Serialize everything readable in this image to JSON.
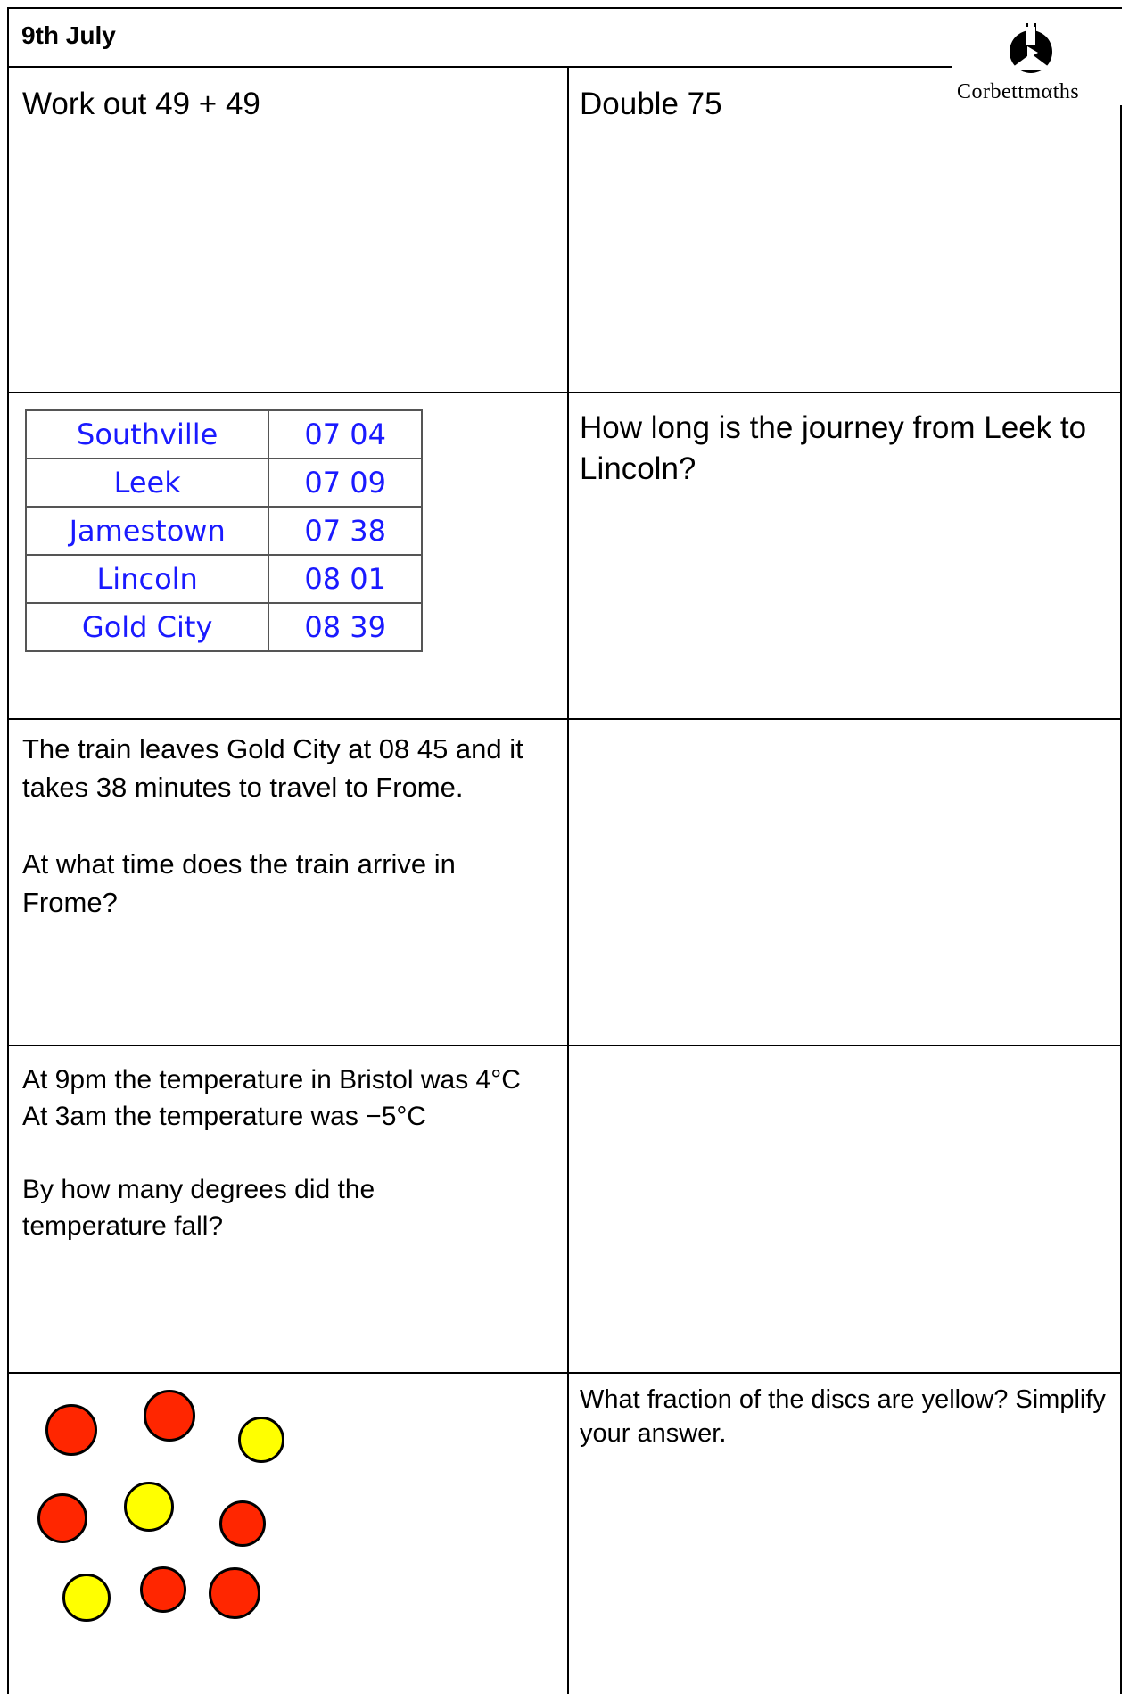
{
  "header": {
    "date": "9th July"
  },
  "logo": {
    "name": "corbettmaths-logo-icon",
    "text": "Corbettmαths"
  },
  "questions": {
    "q1": "Work out 49 + 49",
    "q2": "Double 75",
    "q4": "How long is the journey from Leek to Lincoln?",
    "q5": "The train leaves Gold City at 08 45 and it takes 38 minutes to travel to Frome.",
    "q5b": "At what time does the train arrive in Frome?",
    "q7a": "At 9pm the temperature in Bristol was 4°C",
    "q7b": "At 3am the temperature was −5°C",
    "q7c": "By how many degrees did the temperature fall?",
    "q9": "What fraction of the discs are yellow? Simplify your answer."
  },
  "timetable": [
    {
      "place": "Southville",
      "time": "07 04"
    },
    {
      "place": "Leek",
      "time": "07 09"
    },
    {
      "place": "Jamestown",
      "time": "07 38"
    },
    {
      "place": "Lincoln",
      "time": "08 01"
    },
    {
      "place": "Gold City",
      "time": "08 39"
    }
  ],
  "discs": {
    "colors": {
      "red": "#ff2600",
      "yellow": "#ffff00"
    },
    "items": [
      "red",
      "red",
      "yellow",
      "red",
      "yellow",
      "red",
      "yellow",
      "red",
      "red"
    ]
  }
}
